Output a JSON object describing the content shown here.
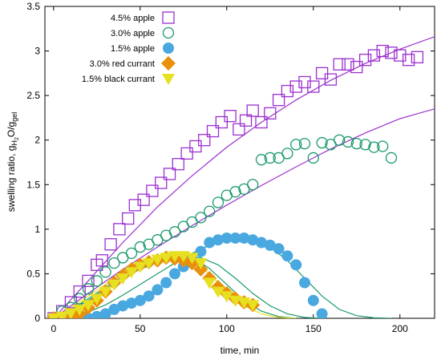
{
  "chart_data": {
    "type": "scatter",
    "xlabel": "time, min",
    "ylabel": {
      "base": "swelling ratio, g",
      "sub1": "H",
      "sub2": "2",
      "mid": "O/g",
      "sub3": "gel"
    },
    "xlim": [
      -5,
      220
    ],
    "ylim": [
      0,
      3.5
    ],
    "xticks": [
      0,
      50,
      100,
      150,
      200
    ],
    "yticks": [
      0,
      0.5,
      1,
      1.5,
      2,
      2.5,
      3,
      3.5
    ],
    "grid": false,
    "legend_position": "top-left",
    "series": [
      {
        "name": "4.5% apple",
        "marker": "open-square",
        "color": "#9b30d0",
        "points": [
          [
            0,
            0
          ],
          [
            5,
            0.08
          ],
          [
            10,
            0.18
          ],
          [
            15,
            0.3
          ],
          [
            20,
            0.42
          ],
          [
            25,
            0.6
          ],
          [
            28,
            0.65
          ],
          [
            33,
            0.83
          ],
          [
            38,
            1.0
          ],
          [
            43,
            1.12
          ],
          [
            47,
            1.27
          ],
          [
            52,
            1.33
          ],
          [
            57,
            1.43
          ],
          [
            62,
            1.52
          ],
          [
            67,
            1.62
          ],
          [
            72,
            1.73
          ],
          [
            77,
            1.85
          ],
          [
            82,
            1.93
          ],
          [
            87,
            2.0
          ],
          [
            92,
            2.1
          ],
          [
            97,
            2.2
          ],
          [
            102,
            2.27
          ],
          [
            107,
            2.12
          ],
          [
            111,
            2.22
          ],
          [
            115,
            2.33
          ],
          [
            120,
            2.2
          ],
          [
            125,
            2.3
          ],
          [
            130,
            2.45
          ],
          [
            135,
            2.55
          ],
          [
            140,
            2.6
          ],
          [
            145,
            2.65
          ],
          [
            150,
            2.6
          ],
          [
            155,
            2.75
          ],
          [
            160,
            2.68
          ],
          [
            165,
            2.85
          ],
          [
            170,
            2.85
          ],
          [
            175,
            2.82
          ],
          [
            180,
            2.9
          ],
          [
            185,
            2.95
          ],
          [
            190,
            3.0
          ],
          [
            195,
            2.98
          ],
          [
            200,
            2.95
          ],
          [
            205,
            2.9
          ],
          [
            210,
            2.93
          ]
        ]
      },
      {
        "name": "3.0% apple",
        "marker": "open-circle",
        "color": "#1a9a6a",
        "points": [
          [
            5,
            0.08
          ],
          [
            10,
            0.12
          ],
          [
            15,
            0.22
          ],
          [
            20,
            0.33
          ],
          [
            25,
            0.42
          ],
          [
            30,
            0.52
          ],
          [
            35,
            0.62
          ],
          [
            40,
            0.68
          ],
          [
            45,
            0.73
          ],
          [
            50,
            0.8
          ],
          [
            55,
            0.83
          ],
          [
            60,
            0.88
          ],
          [
            65,
            0.93
          ],
          [
            70,
            0.97
          ],
          [
            75,
            1.03
          ],
          [
            80,
            1.08
          ],
          [
            85,
            1.13
          ],
          [
            90,
            1.2
          ],
          [
            95,
            1.3
          ],
          [
            100,
            1.38
          ],
          [
            105,
            1.42
          ],
          [
            110,
            1.45
          ],
          [
            115,
            1.5
          ],
          [
            120,
            1.78
          ],
          [
            125,
            1.8
          ],
          [
            130,
            1.8
          ],
          [
            135,
            1.85
          ],
          [
            140,
            1.95
          ],
          [
            145,
            1.96
          ],
          [
            150,
            1.8
          ],
          [
            155,
            1.97
          ],
          [
            160,
            1.95
          ],
          [
            165,
            2.0
          ],
          [
            170,
            1.98
          ],
          [
            175,
            1.96
          ],
          [
            180,
            1.95
          ],
          [
            185,
            1.92
          ],
          [
            190,
            1.93
          ],
          [
            195,
            1.8
          ]
        ]
      },
      {
        "name": "1.5% apple",
        "marker": "filled-circle",
        "color": "#4aa8e0",
        "points": [
          [
            0,
            0
          ],
          [
            5,
            0
          ],
          [
            10,
            0
          ],
          [
            15,
            0
          ],
          [
            20,
            0
          ],
          [
            25,
            0.02
          ],
          [
            30,
            0.05
          ],
          [
            35,
            0.1
          ],
          [
            40,
            0.14
          ],
          [
            45,
            0.17
          ],
          [
            50,
            0.2
          ],
          [
            55,
            0.25
          ],
          [
            60,
            0.32
          ],
          [
            65,
            0.4
          ],
          [
            70,
            0.5
          ],
          [
            75,
            0.58
          ],
          [
            80,
            0.65
          ],
          [
            85,
            0.75
          ],
          [
            90,
            0.85
          ],
          [
            95,
            0.88
          ],
          [
            100,
            0.9
          ],
          [
            105,
            0.9
          ],
          [
            110,
            0.9
          ],
          [
            115,
            0.88
          ],
          [
            120,
            0.85
          ],
          [
            125,
            0.82
          ],
          [
            130,
            0.78
          ],
          [
            135,
            0.7
          ],
          [
            140,
            0.6
          ],
          [
            145,
            0.4
          ],
          [
            150,
            0.2
          ],
          [
            155,
            0.05
          ]
        ]
      },
      {
        "name": "3.0% red currant",
        "marker": "filled-diamond",
        "color": "#e8900a",
        "points": [
          [
            0,
            0
          ],
          [
            5,
            0
          ],
          [
            10,
            0
          ],
          [
            15,
            0.05
          ],
          [
            20,
            0.12
          ],
          [
            25,
            0.2
          ],
          [
            30,
            0.3
          ],
          [
            35,
            0.4
          ],
          [
            40,
            0.48
          ],
          [
            45,
            0.55
          ],
          [
            50,
            0.6
          ],
          [
            55,
            0.63
          ],
          [
            60,
            0.65
          ],
          [
            65,
            0.68
          ],
          [
            70,
            0.67
          ],
          [
            75,
            0.65
          ],
          [
            80,
            0.62
          ],
          [
            85,
            0.55
          ],
          [
            90,
            0.45
          ],
          [
            95,
            0.35
          ],
          [
            100,
            0.28
          ],
          [
            105,
            0.22
          ],
          [
            110,
            0.18
          ],
          [
            115,
            0.15
          ]
        ]
      },
      {
        "name": "1.5% black currant",
        "marker": "filled-triangle-down",
        "color": "#e6e020",
        "points": [
          [
            0,
            0
          ],
          [
            5,
            0.02
          ],
          [
            10,
            0.06
          ],
          [
            15,
            0.1
          ],
          [
            20,
            0.15
          ],
          [
            25,
            0.22
          ],
          [
            30,
            0.3
          ],
          [
            35,
            0.38
          ],
          [
            40,
            0.45
          ],
          [
            45,
            0.52
          ],
          [
            50,
            0.58
          ],
          [
            55,
            0.62
          ],
          [
            60,
            0.66
          ],
          [
            65,
            0.68
          ],
          [
            70,
            0.7
          ],
          [
            75,
            0.7
          ],
          [
            80,
            0.68
          ],
          [
            85,
            0.62
          ],
          [
            90,
            0.4
          ],
          [
            95,
            0.3
          ],
          [
            100,
            0.25
          ],
          [
            105,
            0.2
          ],
          [
            110,
            0.18
          ],
          [
            115,
            0.15
          ]
        ]
      }
    ],
    "fit_curves": [
      {
        "color": "#9b30d0",
        "points": [
          [
            0,
            0
          ],
          [
            20,
            0.42
          ],
          [
            40,
            0.85
          ],
          [
            60,
            1.25
          ],
          [
            80,
            1.6
          ],
          [
            100,
            1.92
          ],
          [
            120,
            2.2
          ],
          [
            140,
            2.45
          ],
          [
            160,
            2.67
          ],
          [
            180,
            2.86
          ],
          [
            200,
            3.02
          ],
          [
            220,
            3.16
          ]
        ]
      },
      {
        "color": "#9b30d0",
        "points": [
          [
            0,
            0
          ],
          [
            20,
            0.28
          ],
          [
            40,
            0.55
          ],
          [
            60,
            0.8
          ],
          [
            80,
            1.04
          ],
          [
            100,
            1.27
          ],
          [
            120,
            1.49
          ],
          [
            140,
            1.7
          ],
          [
            160,
            1.9
          ],
          [
            180,
            2.08
          ],
          [
            200,
            2.24
          ],
          [
            220,
            2.35
          ]
        ]
      },
      {
        "color": "#1a9a6a",
        "points": [
          [
            0,
            0
          ],
          [
            10,
            0.02
          ],
          [
            20,
            0.07
          ],
          [
            30,
            0.15
          ],
          [
            40,
            0.26
          ],
          [
            50,
            0.38
          ],
          [
            60,
            0.5
          ],
          [
            70,
            0.62
          ],
          [
            80,
            0.73
          ],
          [
            90,
            0.82
          ],
          [
            100,
            0.88
          ],
          [
            108,
            0.9
          ],
          [
            115,
            0.88
          ],
          [
            125,
            0.8
          ],
          [
            135,
            0.65
          ],
          [
            145,
            0.45
          ],
          [
            155,
            0.25
          ],
          [
            165,
            0.1
          ],
          [
            175,
            0.03
          ],
          [
            185,
            0.005
          ],
          [
            195,
            0
          ]
        ]
      },
      {
        "color": "#1a9a6a",
        "points": [
          [
            0,
            0
          ],
          [
            10,
            0.08
          ],
          [
            20,
            0.2
          ],
          [
            30,
            0.33
          ],
          [
            40,
            0.45
          ],
          [
            50,
            0.55
          ],
          [
            60,
            0.63
          ],
          [
            70,
            0.68
          ],
          [
            78,
            0.7
          ],
          [
            85,
            0.68
          ],
          [
            95,
            0.6
          ],
          [
            105,
            0.45
          ],
          [
            115,
            0.28
          ],
          [
            125,
            0.14
          ],
          [
            135,
            0.05
          ],
          [
            145,
            0.01
          ],
          [
            155,
            0
          ]
        ]
      },
      {
        "color": "#1a9a6a",
        "points": [
          [
            0,
            0
          ],
          [
            10,
            0.1
          ],
          [
            20,
            0.22
          ],
          [
            30,
            0.35
          ],
          [
            40,
            0.47
          ],
          [
            50,
            0.57
          ],
          [
            60,
            0.64
          ],
          [
            70,
            0.68
          ],
          [
            76,
            0.69
          ],
          [
            82,
            0.66
          ],
          [
            90,
            0.56
          ],
          [
            100,
            0.38
          ],
          [
            110,
            0.2
          ],
          [
            120,
            0.08
          ],
          [
            130,
            0.02
          ],
          [
            140,
            0
          ]
        ]
      },
      {
        "color": "#e6e020",
        "points": [
          [
            0,
            0
          ],
          [
            10,
            0.12
          ],
          [
            20,
            0.25
          ],
          [
            30,
            0.38
          ],
          [
            40,
            0.5
          ],
          [
            50,
            0.6
          ],
          [
            60,
            0.66
          ],
          [
            68,
            0.69
          ],
          [
            75,
            0.68
          ],
          [
            82,
            0.62
          ],
          [
            90,
            0.5
          ],
          [
            100,
            0.3
          ],
          [
            110,
            0.14
          ],
          [
            120,
            0.05
          ],
          [
            130,
            0.01
          ],
          [
            140,
            0
          ]
        ]
      }
    ]
  }
}
